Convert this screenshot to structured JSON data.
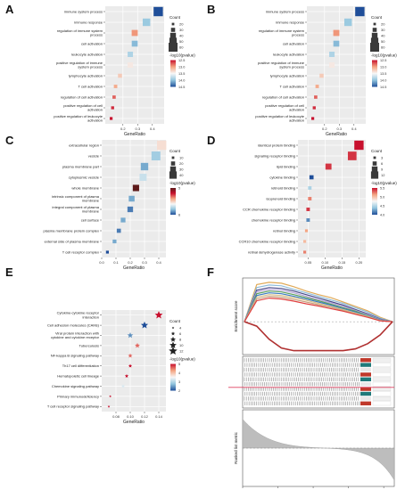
{
  "figure": {
    "panel_letters": [
      "A",
      "B",
      "C",
      "D",
      "E",
      "F"
    ]
  },
  "chart_data": [
    {
      "panel": "A",
      "type": "scatter",
      "marker": "square",
      "title": "",
      "xlabel": "GeneRatio",
      "ylabel": "",
      "categories": [
        "immune system process",
        "immune response",
        "regulation of immune system process",
        "cell activation",
        "leukocyte activation",
        "positive regulation of immune system process",
        "lymphocyte activation",
        "T cell activation",
        "regulation of cell activation",
        "positive regulation of cell activation",
        "positive regulation of leukocyte activation"
      ],
      "x": [
        0.44,
        0.36,
        0.28,
        0.28,
        0.25,
        0.25,
        0.18,
        0.15,
        0.14,
        0.13,
        0.12
      ],
      "count": [
        60,
        48,
        38,
        37,
        33,
        33,
        24,
        20,
        19,
        17,
        16
      ],
      "color_value": [
        14.5,
        13.9,
        12.8,
        14.0,
        13.8,
        13.3,
        13.1,
        12.9,
        12.6,
        12.4,
        12.3
      ],
      "xlim": [
        0.08,
        0.48
      ],
      "xticks": [
        "0.2",
        "0.3",
        "0.4"
      ],
      "legend_size": {
        "title": "Count",
        "values": [
          "20",
          "30",
          "40",
          "50",
          "60"
        ]
      },
      "legend_color": {
        "title": "-log10(pvalue)",
        "ticks": [
          "12.5",
          "13.0",
          "13.5",
          "14.0",
          "14.5"
        ],
        "colors": [
          "#c8102e",
          "#f4a582",
          "#f7f7f7",
          "#92c5de",
          "#1f4e99"
        ]
      },
      "grid": true
    },
    {
      "panel": "B",
      "type": "scatter",
      "marker": "square",
      "title": "",
      "xlabel": "GeneRatio",
      "ylabel": "",
      "categories": [
        "immune system process",
        "immune response",
        "regulation of immune system process",
        "cell activation",
        "leukocyte activation",
        "positive regulation of immune system process",
        "lymphocyte activation",
        "T cell activation",
        "regulation of cell activation",
        "positive regulation of cell activation",
        "positive regulation of leukocyte activation"
      ],
      "x": [
        0.44,
        0.36,
        0.28,
        0.28,
        0.25,
        0.25,
        0.18,
        0.15,
        0.14,
        0.13,
        0.12
      ],
      "count": [
        60,
        48,
        38,
        37,
        33,
        33,
        24,
        20,
        19,
        17,
        16
      ],
      "color_value": [
        14.5,
        13.9,
        12.8,
        14.0,
        13.8,
        13.3,
        13.1,
        12.9,
        12.6,
        12.4,
        12.3
      ],
      "xlim": [
        0.08,
        0.48
      ],
      "xticks": [
        "0.2",
        "0.3",
        "0.4"
      ],
      "legend_size": {
        "title": "Count",
        "values": [
          "20",
          "30",
          "40",
          "50",
          "60"
        ]
      },
      "legend_color": {
        "title": "-log10(pvalue)",
        "ticks": [
          "12.5",
          "13.0",
          "13.5",
          "14.0",
          "14.5"
        ],
        "colors": [
          "#c8102e",
          "#f4a582",
          "#f7f7f7",
          "#92c5de",
          "#1f4e99"
        ]
      },
      "grid": true
    },
    {
      "panel": "C",
      "type": "scatter",
      "marker": "square",
      "title": "",
      "xlabel": "GeneRatio",
      "ylabel": "",
      "categories": [
        "extracellular region",
        "vesicle",
        "plasma membrane part",
        "cytoplasmic vesicle",
        "whole membrane",
        "intrinsic component of plasma membrane",
        "integral component of plasma membrane",
        "cell surface",
        "plasma membrane protein complex",
        "external side of plasma membrane",
        "T cell receptor complex"
      ],
      "x": [
        0.42,
        0.38,
        0.3,
        0.29,
        0.24,
        0.21,
        0.2,
        0.15,
        0.12,
        0.09,
        0.04
      ],
      "count": [
        40,
        38,
        30,
        28,
        24,
        21,
        20,
        15,
        12,
        10,
        5
      ],
      "color_value": [
        5.2,
        4.9,
        4.8,
        5.0,
        5.9,
        4.8,
        4.7,
        4.8,
        4.7,
        4.8,
        4.6
      ],
      "xlim": [
        0.0,
        0.45
      ],
      "xticks": [
        "0.0",
        "0.1",
        "0.2",
        "0.3",
        "0.4"
      ],
      "legend_size": {
        "title": "Count",
        "values": [
          "10",
          "20",
          "30",
          "40"
        ]
      },
      "legend_color": {
        "title": "-log10(pvalue)",
        "ticks": [
          "5",
          "6"
        ],
        "colors": [
          "#5e1a1a",
          "#c8102e",
          "#f4a582",
          "#f7f7f7",
          "#92c5de",
          "#1f4e99"
        ]
      },
      "grid": true
    },
    {
      "panel": "D",
      "type": "scatter",
      "marker": "square",
      "title": "",
      "xlabel": "GeneRatio",
      "ylabel": "",
      "categories": [
        "identical protein binding",
        "signaling receptor binding",
        "lipid binding",
        "cytokine binding",
        "retinoid binding",
        "isoprenoid binding",
        "CCR chemokine receptor binding",
        "chemokine receptor binding",
        "retinol binding",
        "CCR10 chemokine receptor binding",
        "retinal dehydrogenase activity"
      ],
      "x": [
        0.2,
        0.18,
        0.11,
        0.06,
        0.055,
        0.055,
        0.05,
        0.05,
        0.045,
        0.04,
        0.04
      ],
      "count": [
        12,
        11,
        7,
        4,
        3,
        3,
        3,
        3,
        2,
        2,
        2
      ],
      "color_value": [
        3.9,
        4.0,
        4.0,
        5.5,
        5.0,
        4.2,
        4.0,
        5.3,
        4.3,
        4.4,
        4.2
      ],
      "xlim": [
        0.02,
        0.22
      ],
      "xticks": [
        "0.05",
        "0.10",
        "0.15",
        "0.20"
      ],
      "legend_size": {
        "title": "Count",
        "values": [
          "3",
          "6",
          "9",
          "12"
        ]
      },
      "legend_color": {
        "title": "-log10(pvalue)",
        "ticks": [
          "5.5",
          "5.0",
          "4.5",
          "4.0"
        ],
        "colors": [
          "#c8102e",
          "#f4a582",
          "#f7f7f7",
          "#92c5de",
          "#1f4e99"
        ]
      },
      "grid": true
    },
    {
      "panel": "E",
      "type": "scatter",
      "marker": "star",
      "title": "",
      "xlabel": "GeneRatio",
      "ylabel": "",
      "categories": [
        "Cytokine-cytokine receptor interaction",
        "Cell adhesion molecules (CAMs)",
        "Viral protein interaction with cytokine and cytokine receptor",
        "Tuberculosis",
        "NF-kappa B signaling pathway",
        "Th17 cell differentiation",
        "Hematopoietic cell lineage",
        "Chemokine signaling pathway",
        "Primary immunodeficiency",
        "T cell receptor signaling pathway"
      ],
      "x": [
        0.14,
        0.12,
        0.1,
        0.11,
        0.1,
        0.1,
        0.095,
        0.09,
        0.072,
        0.07
      ],
      "count": [
        12,
        11,
        9,
        8,
        7,
        6,
        6,
        6,
        4,
        4
      ],
      "color_value": [
        2,
        5.5,
        5,
        2.5,
        2.5,
        2,
        2,
        4,
        2,
        2
      ],
      "xlim": [
        0.06,
        0.15
      ],
      "xticks": [
        "0.08",
        "0.10",
        "0.12",
        "0.14"
      ],
      "legend_size": {
        "title": "Count",
        "values": [
          "4",
          "6",
          "8",
          "10",
          "12"
        ]
      },
      "legend_color": {
        "title": "-log10(pvalue)",
        "ticks": [
          "5",
          "4",
          "3",
          "2"
        ],
        "colors": [
          "#c8102e",
          "#f4a582",
          "#f7f7f7",
          "#92c5de",
          "#1f4e99"
        ]
      },
      "grid": true
    },
    {
      "panel": "F",
      "type": "line",
      "title": "",
      "top": {
        "ylabel": "Enrichment score",
        "curve_colors": [
          "#e0aa58",
          "#8fbcd9",
          "#4a4a8a",
          "#b8a6d8",
          "#5ba05b",
          "#3a7bbf",
          "#d8c088",
          "#c9a080",
          "#e04040",
          "#b03030"
        ],
        "curves": [
          [
            0,
            0.85,
            0.9,
            0.88,
            0.8,
            0.7,
            0.62,
            0.55,
            0.45,
            0.35,
            0.25,
            0.1,
            0
          ],
          [
            0,
            0.78,
            0.84,
            0.82,
            0.74,
            0.66,
            0.58,
            0.5,
            0.42,
            0.32,
            0.22,
            0.08,
            0
          ],
          [
            0,
            0.72,
            0.78,
            0.76,
            0.7,
            0.62,
            0.54,
            0.46,
            0.38,
            0.28,
            0.18,
            0.06,
            0
          ],
          [
            0,
            0.68,
            0.74,
            0.72,
            0.66,
            0.58,
            0.5,
            0.43,
            0.35,
            0.26,
            0.16,
            0.05,
            0
          ],
          [
            0,
            0.64,
            0.7,
            0.68,
            0.62,
            0.55,
            0.48,
            0.4,
            0.32,
            0.24,
            0.14,
            0.04,
            0
          ],
          [
            0,
            0.6,
            0.66,
            0.64,
            0.58,
            0.52,
            0.45,
            0.38,
            0.3,
            0.22,
            0.13,
            0.04,
            0
          ],
          [
            0,
            0.56,
            0.62,
            0.6,
            0.55,
            0.49,
            0.42,
            0.35,
            0.28,
            0.2,
            0.12,
            0.03,
            0
          ],
          [
            0,
            0.52,
            0.58,
            0.56,
            0.51,
            0.45,
            0.39,
            0.33,
            0.26,
            0.18,
            0.1,
            0.03,
            0
          ],
          [
            0,
            0.48,
            0.54,
            0.52,
            0.47,
            0.41,
            0.36,
            0.3,
            0.24,
            0.17,
            0.1,
            0.02,
            0
          ],
          [
            0,
            -0.1,
            -0.4,
            -0.6,
            -0.66,
            -0.66,
            -0.66,
            -0.66,
            -0.66,
            -0.62,
            -0.5,
            -0.3,
            0
          ]
        ],
        "ylim": [
          -0.75,
          1.0
        ]
      },
      "bottom": {
        "xlabel": "Rank in Ordered Dataset",
        "ylabel": "Ranked list metric",
        "xticks": [
          "0",
          "2,000",
          "4,000",
          "6,000",
          "8,000"
        ],
        "xlim": [
          0,
          8600
        ]
      }
    }
  ]
}
